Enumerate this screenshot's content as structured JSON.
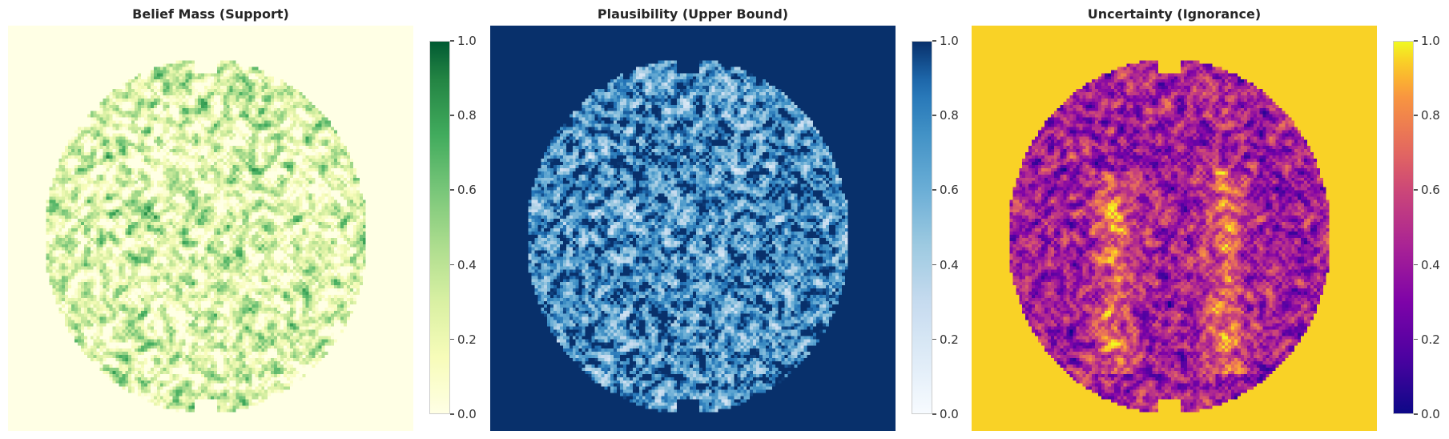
{
  "figure": {
    "panels": [
      {
        "id": "belief",
        "title": "Belief Mass (Support)",
        "colormap": "Greens",
        "colorbar_ticks": [
          "0.0",
          "0.2",
          "0.4",
          "0.6",
          "0.8",
          "1.0"
        ]
      },
      {
        "id": "plausibility",
        "title": "Plausibility (Upper Bound)",
        "colormap": "Blues",
        "colorbar_ticks": [
          "0.0",
          "0.2",
          "0.4",
          "0.6",
          "0.8",
          "1.0"
        ]
      },
      {
        "id": "uncertainty",
        "title": "Uncertainty (Ignorance)",
        "colormap": "plasma",
        "colorbar_ticks": [
          "0.0",
          "0.2",
          "0.4",
          "0.6",
          "0.8",
          "1.0"
        ]
      }
    ]
  },
  "chart_data": [
    {
      "type": "heatmap",
      "title": "Belief Mass (Support)",
      "colormap": "Greens",
      "vmin": 0.0,
      "vmax": 1.0,
      "background_value": 0.0,
      "interior_mean_value": 0.2,
      "colorbar_ticks": [
        0.0,
        0.2,
        0.4,
        0.6,
        0.8,
        1.0
      ],
      "grid": false
    },
    {
      "type": "heatmap",
      "title": "Plausibility (Upper Bound)",
      "colormap": "Blues",
      "vmin": 0.0,
      "vmax": 1.0,
      "background_value": 1.0,
      "interior_mean_value": 0.75,
      "colorbar_ticks": [
        0.0,
        0.2,
        0.4,
        0.6,
        0.8,
        1.0
      ],
      "grid": false
    },
    {
      "type": "heatmap",
      "title": "Uncertainty (Ignorance)",
      "colormap": "plasma",
      "vmin": 0.0,
      "vmax": 1.0,
      "background_value": 0.95,
      "interior_mean_value": 0.55,
      "colorbar_ticks": [
        0.0,
        0.2,
        0.4,
        0.6,
        0.8,
        1.0
      ],
      "grid": false
    }
  ]
}
